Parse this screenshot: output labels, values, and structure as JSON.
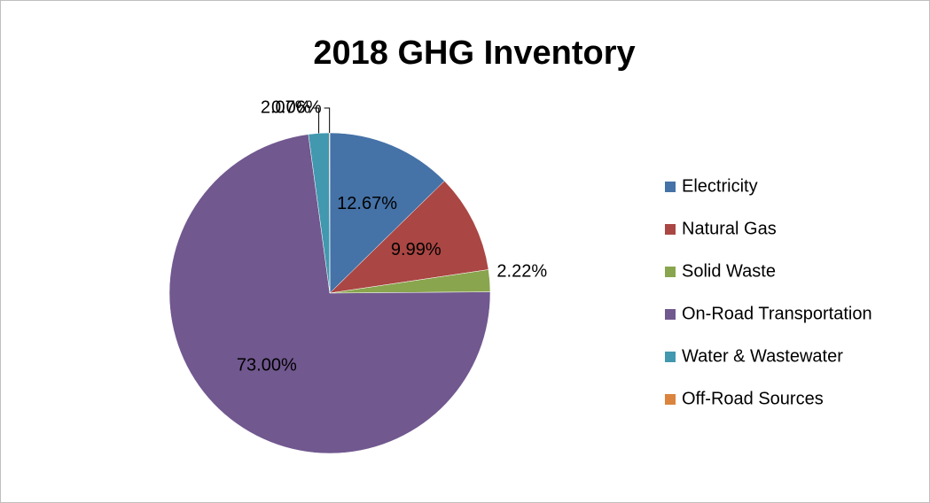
{
  "chart_data": {
    "type": "pie",
    "title": "2018 GHG Inventory",
    "categories": [
      "Electricity",
      "Natural Gas",
      "Solid Waste",
      "On-Road Transportation",
      "Water & Wastewater",
      "Off-Road Sources"
    ],
    "values": [
      12.67,
      9.99,
      2.22,
      73.0,
      2.07,
      0.06
    ],
    "value_labels": [
      "12.67%",
      "9.99%",
      "2.22%",
      "73.00%",
      "2.07%",
      "0.06%"
    ],
    "colors": [
      "#4572a7",
      "#aa4643",
      "#89a54e",
      "#71588f",
      "#4198af",
      "#db843d"
    ],
    "legend": "right"
  }
}
